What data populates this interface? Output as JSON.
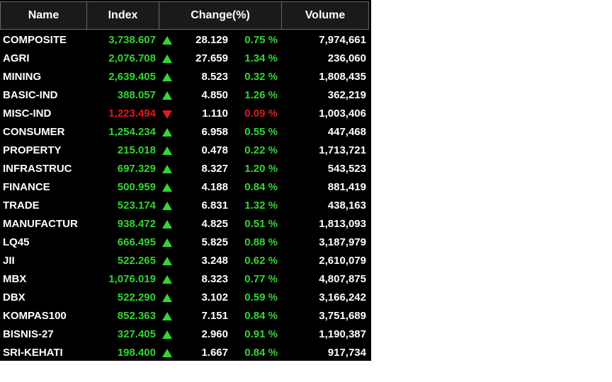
{
  "header": {
    "name": "Name",
    "index": "Index",
    "change": "Change(%)",
    "volume": "Volume"
  },
  "colors": {
    "up": "#33d633",
    "down": "#e01a1a",
    "background": "#000000",
    "text": "#ffffff"
  },
  "rows": [
    {
      "name": "COMPOSITE",
      "index": "3,738.607",
      "direction": "up",
      "change": "28.129",
      "percent": "0.75 %",
      "volume": "7,974,661"
    },
    {
      "name": "AGRI",
      "index": "2,076.708",
      "direction": "up",
      "change": "27.659",
      "percent": "1.34 %",
      "volume": "236,060"
    },
    {
      "name": "MINING",
      "index": "2,639.405",
      "direction": "up",
      "change": "8.523",
      "percent": "0.32 %",
      "volume": "1,808,435"
    },
    {
      "name": "BASIC-IND",
      "index": "388.057",
      "direction": "up",
      "change": "4.850",
      "percent": "1.26 %",
      "volume": "362,219"
    },
    {
      "name": "MISC-IND",
      "index": "1,223.494",
      "direction": "down",
      "change": "1.110",
      "percent": "0.09 %",
      "volume": "1,003,406"
    },
    {
      "name": "CONSUMER",
      "index": "1,254.234",
      "direction": "up",
      "change": "6.958",
      "percent": "0.55 %",
      "volume": "447,468"
    },
    {
      "name": "PROPERTY",
      "index": "215.018",
      "direction": "up",
      "change": "0.478",
      "percent": "0.22 %",
      "volume": "1,713,721"
    },
    {
      "name": "INFRASTRUC",
      "index": "697.329",
      "direction": "up",
      "change": "8.327",
      "percent": "1.20 %",
      "volume": "543,523"
    },
    {
      "name": "FINANCE",
      "index": "500.959",
      "direction": "up",
      "change": "4.188",
      "percent": "0.84 %",
      "volume": "881,419"
    },
    {
      "name": "TRADE",
      "index": "523.174",
      "direction": "up",
      "change": "6.831",
      "percent": "1.32 %",
      "volume": "438,163"
    },
    {
      "name": "MANUFACTUR",
      "index": "938.472",
      "direction": "up",
      "change": "4.825",
      "percent": "0.51 %",
      "volume": "1,813,093"
    },
    {
      "name": "LQ45",
      "index": "666.495",
      "direction": "up",
      "change": "5.825",
      "percent": "0.88 %",
      "volume": "3,187,979"
    },
    {
      "name": "JII",
      "index": "522.265",
      "direction": "up",
      "change": "3.248",
      "percent": "0.62 %",
      "volume": "2,610,079"
    },
    {
      "name": "MBX",
      "index": "1,076.019",
      "direction": "up",
      "change": "8.323",
      "percent": "0.77 %",
      "volume": "4,807,875"
    },
    {
      "name": "DBX",
      "index": "522.290",
      "direction": "up",
      "change": "3.102",
      "percent": "0.59 %",
      "volume": "3,166,242"
    },
    {
      "name": "KOMPAS100",
      "index": "852.363",
      "direction": "up",
      "change": "7.151",
      "percent": "0.84 %",
      "volume": "3,751,689"
    },
    {
      "name": "BISNIS-27",
      "index": "327.405",
      "direction": "up",
      "change": "2.960",
      "percent": "0.91 %",
      "volume": "1,190,387"
    },
    {
      "name": "SRI-KEHATI",
      "index": "198.400",
      "direction": "up",
      "change": "1.667",
      "percent": "0.84 %",
      "volume": "917,734"
    }
  ]
}
